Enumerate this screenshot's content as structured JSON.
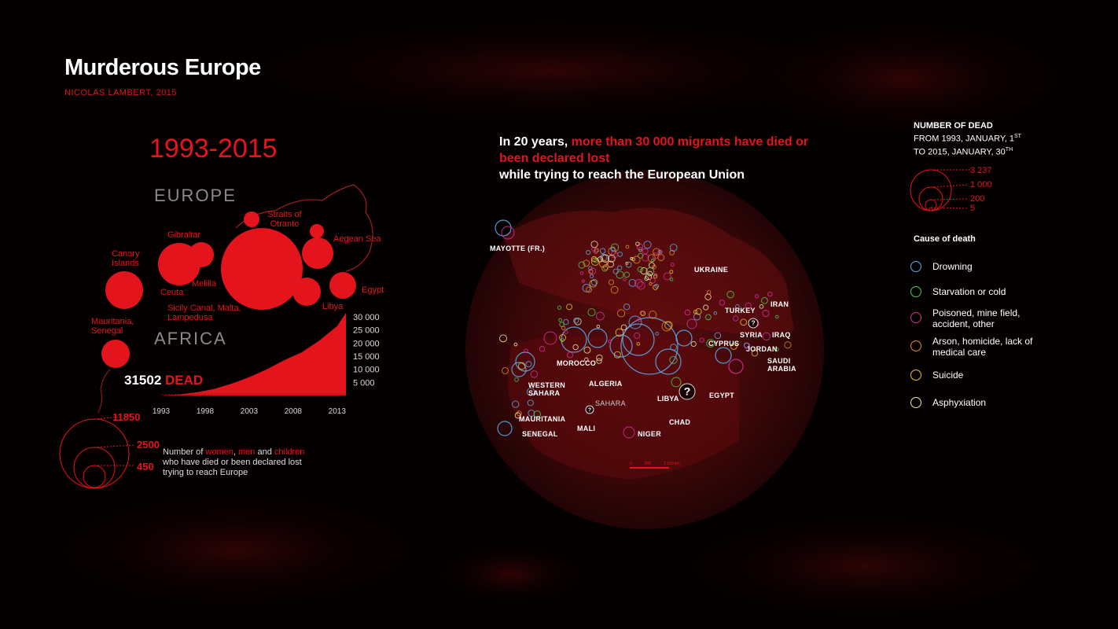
{
  "title": "Murderous Europe",
  "author": "NICOLAS LAMBERT, 2015",
  "period": "1993-2015",
  "continents": {
    "europe": "EUROPE",
    "africa": "AFRICA"
  },
  "route_labels": [
    "Canary Islands",
    "Gibraltar",
    "Straits of Otranto",
    "Aegean Sea",
    "Ceuta",
    "Melilla",
    "Egypt",
    "Libya",
    "Sicily Canal, Malta, Lampedusa",
    "Mauritania, Senegal"
  ],
  "total_dead": {
    "number": "31502",
    "label": "DEAD"
  },
  "size_legend_left": {
    "values": [
      "11850",
      "2500",
      "450"
    ],
    "text_1": "Number of ",
    "women": "women",
    "comma": ", ",
    "men": "men",
    "and": " and ",
    "children": "children",
    "text_2": "who have died or been declared lost",
    "text_3": "trying to reach Europe"
  },
  "headline": {
    "part1": "In 20 years, ",
    "part2": "more than 30 000 migrants have died or been declared lost",
    "part3": "while trying to reach the European Union"
  },
  "places": [
    "MAYOTTE (FR.)",
    "UKRAINE",
    "TURKEY",
    "IRAN",
    "SYRIA",
    "IRAQ",
    "CYPRUS",
    "JORDAN",
    "SAUDI ARABIA",
    "MOROCCO",
    "WESTERN SAHARA",
    "ALGERIA",
    "LIBYA",
    "EGYPT",
    "SAHARA",
    "MAURITANIA",
    "MALI",
    "CHAD",
    "SENEGAL",
    "NIGER"
  ],
  "scale_bar": [
    "0",
    "500",
    "1 000 km"
  ],
  "legend": {
    "title_line1": "NUMBER OF DEAD",
    "title_line2": "FROM 1993, JANUARY, 1",
    "sup1": "ST",
    "title_line3": "TO 2015, JANUARY, 30",
    "sup2": "TH",
    "values": [
      "3 237",
      "1 000",
      "200",
      "5"
    ],
    "cause_title": "Cause of death",
    "causes": [
      {
        "label": "Drowning",
        "color": "#5aa9e6"
      },
      {
        "label": "Starvation or cold",
        "color": "#4cc94c"
      },
      {
        "label": "Poisoned, mine field, accident, other",
        "color": "#d62f9b"
      },
      {
        "label": "Arson, homicide, lack of medical care",
        "color": "#e08a2a"
      },
      {
        "label": "Suicide",
        "color": "#e2c22a"
      },
      {
        "label": "Asphyxiation",
        "color": "#e8e8a8"
      }
    ]
  },
  "colors": {
    "accent": "#e3141b",
    "background": "#000000"
  },
  "chart_data": {
    "type": "area",
    "title": "",
    "xlabel": "",
    "ylabel": "",
    "x_ticks": [
      "1993",
      "1998",
      "2003",
      "2008",
      "2013"
    ],
    "y_ticks": [
      "5 000",
      "10 000",
      "15 000",
      "20 000",
      "25 000",
      "30 000"
    ],
    "ylim": [
      0,
      31502
    ],
    "x": [
      1993,
      1995,
      1997,
      1999,
      2001,
      2003,
      2005,
      2007,
      2009,
      2011,
      2013,
      2014
    ],
    "values": [
      0,
      400,
      1200,
      2500,
      4500,
      7000,
      10000,
      13500,
      16500,
      21000,
      26500,
      31502
    ]
  }
}
